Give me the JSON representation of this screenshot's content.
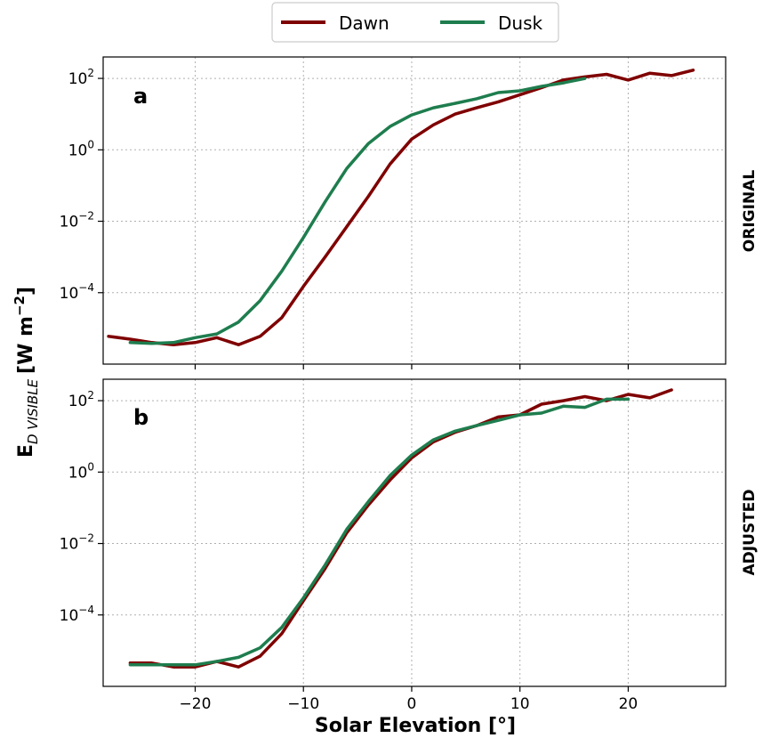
{
  "legend": {
    "dawn": "Dawn",
    "dusk": "Dusk"
  },
  "axes": {
    "xlabel": "Solar Elevation [°]",
    "ylabel_main": "E",
    "ylabel_sub": "D VISIBLE",
    "ylabel_units": "[W m",
    "ylabel_exp": "−2",
    "ylabel_close": "]"
  },
  "colors": {
    "dawn": "#7f0000",
    "dusk": "#1e7d4e"
  },
  "chart_data": [
    {
      "type": "line",
      "panel_letter": "a",
      "side_label": "ORIGINAL",
      "yscale": "log",
      "xlim": [
        -28.5,
        29
      ],
      "ylim_log10": [
        -6,
        2.6
      ],
      "x_ticks": [
        -20,
        -10,
        0,
        10,
        20
      ],
      "x_tick_labels": [
        "−20",
        "−10",
        "0",
        "10",
        "20"
      ],
      "y_ticks_log10": [
        -4,
        -2,
        0,
        2
      ],
      "y_tick_labels": [
        {
          "base": "10",
          "exp": "−4"
        },
        {
          "base": "10",
          "exp": "−2"
        },
        {
          "base": "10",
          "exp": "0"
        },
        {
          "base": "10",
          "exp": "2"
        }
      ],
      "grid": true,
      "series": [
        {
          "name": "Dawn",
          "x": [
            -28,
            -26,
            -24,
            -22,
            -20,
            -18,
            -16,
            -14,
            -12,
            -10,
            -8,
            -6,
            -4,
            -2,
            0,
            2,
            4,
            6,
            8,
            10,
            12,
            14,
            16,
            18,
            20,
            22,
            24,
            26
          ],
          "y": [
            6e-06,
            5e-06,
            4e-06,
            3.5e-06,
            4e-06,
            5.5e-06,
            3.5e-06,
            6e-06,
            2e-05,
            0.00015,
            0.001,
            0.007,
            0.05,
            0.4,
            2,
            5,
            10,
            15,
            22,
            35,
            55,
            90,
            110,
            130,
            90,
            140,
            120,
            170
          ]
        },
        {
          "name": "Dusk",
          "x": [
            -26,
            -24,
            -22,
            -20,
            -18,
            -16,
            -14,
            -12,
            -10,
            -8,
            -6,
            -4,
            -2,
            0,
            2,
            4,
            6,
            8,
            10,
            12,
            14,
            16
          ],
          "y": [
            4e-06,
            3.8e-06,
            4e-06,
            5.5e-06,
            7e-06,
            1.5e-05,
            6e-05,
            0.0004,
            0.0035,
            0.035,
            0.3,
            1.5,
            4.5,
            9.5,
            15,
            20,
            27,
            40,
            45,
            60,
            75,
            100
          ]
        }
      ]
    },
    {
      "type": "line",
      "panel_letter": "b",
      "side_label": "ADJUSTED",
      "yscale": "log",
      "xlim": [
        -28.5,
        29
      ],
      "ylim_log10": [
        -6,
        2.6
      ],
      "x_ticks": [
        -20,
        -10,
        0,
        10,
        20
      ],
      "x_tick_labels": [
        "−20",
        "−10",
        "0",
        "10",
        "20"
      ],
      "y_ticks_log10": [
        -4,
        -2,
        0,
        2
      ],
      "y_tick_labels": [
        {
          "base": "10",
          "exp": "−4"
        },
        {
          "base": "10",
          "exp": "−2"
        },
        {
          "base": "10",
          "exp": "0"
        },
        {
          "base": "10",
          "exp": "2"
        }
      ],
      "grid": true,
      "series": [
        {
          "name": "Dawn",
          "x": [
            -26,
            -24,
            -22,
            -20,
            -18,
            -16,
            -14,
            -12,
            -10,
            -8,
            -6,
            -4,
            -2,
            0,
            2,
            4,
            6,
            8,
            10,
            12,
            14,
            16,
            18,
            20,
            22,
            24
          ],
          "y": [
            4.5e-06,
            4.5e-06,
            3.5e-06,
            3.5e-06,
            5e-06,
            3.5e-06,
            7e-06,
            3e-05,
            0.00025,
            0.002,
            0.02,
            0.12,
            0.6,
            2.5,
            7,
            13,
            20,
            35,
            40,
            80,
            100,
            130,
            100,
            150,
            120,
            200
          ]
        },
        {
          "name": "Dusk",
          "x": [
            -26,
            -24,
            -22,
            -20,
            -18,
            -16,
            -14,
            -12,
            -10,
            -8,
            -6,
            -4,
            -2,
            0,
            2,
            4,
            6,
            8,
            10,
            12,
            14,
            16,
            18,
            20
          ],
          "y": [
            4e-06,
            4e-06,
            4e-06,
            4e-06,
            5e-06,
            6.5e-06,
            1.2e-05,
            4.5e-05,
            0.0003,
            0.0025,
            0.025,
            0.15,
            0.8,
            3,
            8,
            14,
            20,
            28,
            40,
            45,
            70,
            65,
            110,
            110
          ]
        }
      ]
    }
  ]
}
